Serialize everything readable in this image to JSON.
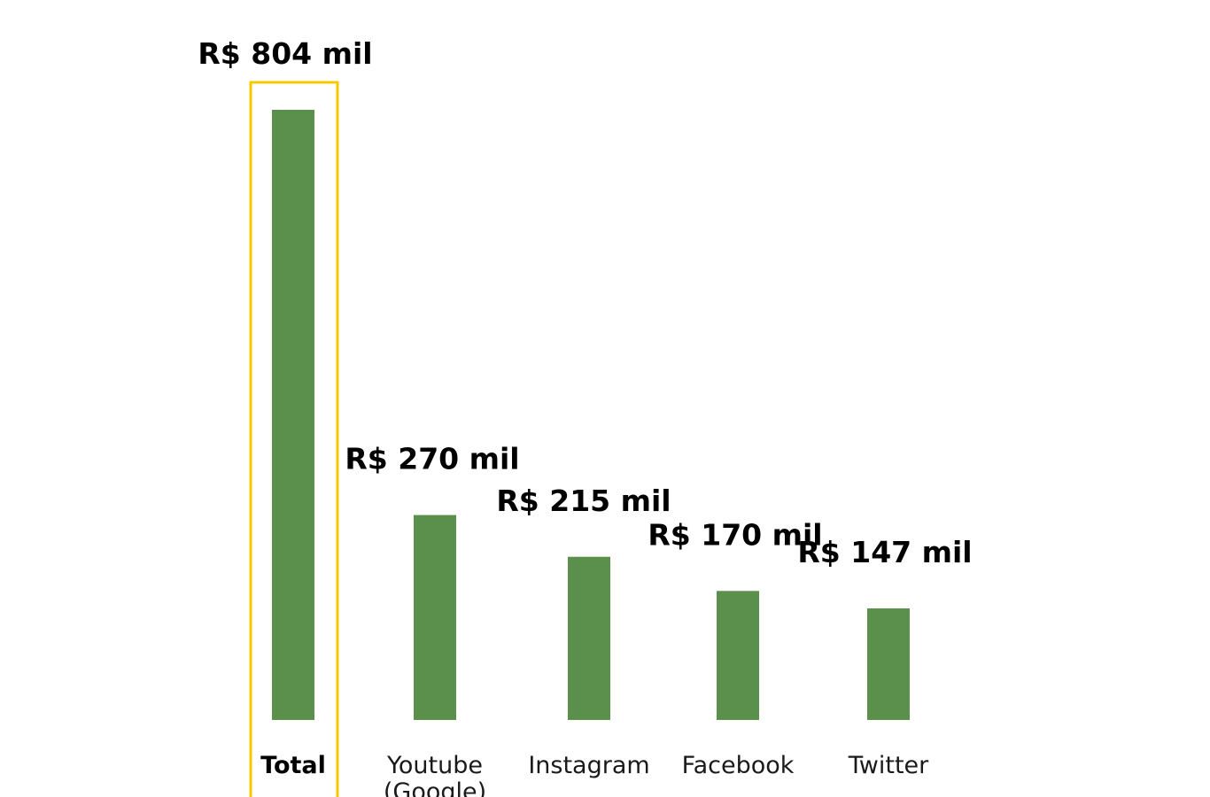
{
  "chart_data": {
    "type": "bar",
    "categories": [
      "Total",
      "Youtube (Google)",
      "Instagram",
      "Facebook",
      "Twitter"
    ],
    "category_lines": [
      [
        "Total"
      ],
      [
        "Youtube",
        "(Google)"
      ],
      [
        "Instagram"
      ],
      [
        "Facebook"
      ],
      [
        "Twitter"
      ]
    ],
    "values": [
      804,
      270,
      215,
      170,
      147
    ],
    "data_labels": [
      "R$ 804 mil",
      "R$ 270 mil",
      "R$ 215 mil",
      "R$ 170 mil",
      "R$ 147 mil"
    ],
    "highlighted_category": "Total",
    "unit": "R$ mil",
    "title": "",
    "xlabel": "",
    "ylabel": "",
    "ylim": [
      0,
      804
    ],
    "grid": false,
    "legend": "none"
  },
  "colors": {
    "bar": "#5b8f4c",
    "highlight_box": "#f5c800",
    "label_text": "#000000",
    "background": "#ffffff"
  }
}
